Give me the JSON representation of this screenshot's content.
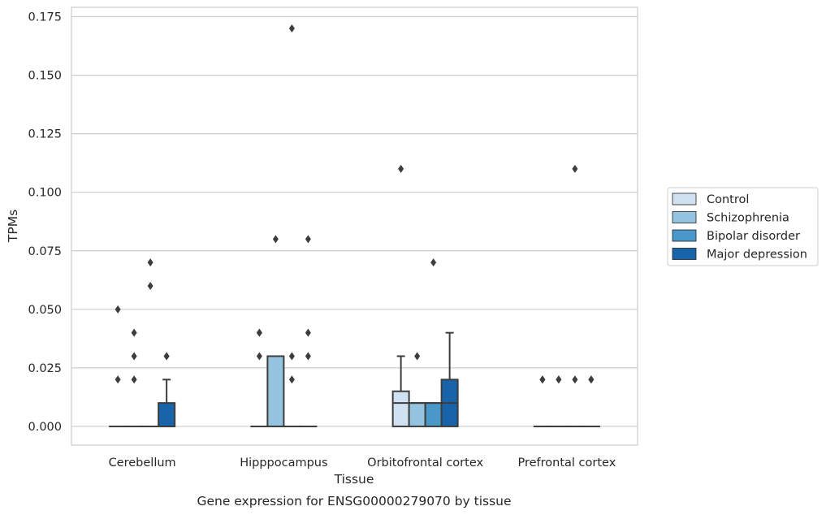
{
  "chart_data": {
    "type": "box",
    "title": "",
    "caption": "Gene expression for ENSG00000279070 by tissue",
    "xlabel": "Tissue",
    "ylabel": "TPMs",
    "ylim": [
      -0.008,
      0.179
    ],
    "yticks": [
      0.0,
      0.025,
      0.05,
      0.075,
      0.1,
      0.125,
      0.15,
      0.175
    ],
    "ytick_labels": [
      "0.000",
      "0.025",
      "0.050",
      "0.075",
      "0.100",
      "0.125",
      "0.150",
      "0.175"
    ],
    "grid": "horizontal",
    "legend_position": "right",
    "categories": [
      "Cerebellum",
      "Hipppocampus",
      "Orbitofrontal cortex",
      "Prefrontal cortex"
    ],
    "series": [
      {
        "name": "Control",
        "color": "#d0e1f2",
        "boxes": [
          {
            "q1": 0,
            "median": 0,
            "q3": 0,
            "whisker_low": 0,
            "whisker_high": 0,
            "outliers": [
              0.02,
              0.05
            ]
          },
          {
            "q1": 0,
            "median": 0,
            "q3": 0,
            "whisker_low": 0,
            "whisker_high": 0,
            "outliers": [
              0.03,
              0.04,
              0.04
            ]
          },
          {
            "q1": 0,
            "median": 0.01,
            "q3": 0.015,
            "whisker_low": 0,
            "whisker_high": 0.03,
            "outliers": [
              0.11
            ]
          },
          {
            "q1": 0,
            "median": 0,
            "q3": 0,
            "whisker_low": 0,
            "whisker_high": 0,
            "outliers": [
              0.02,
              0.02
            ]
          }
        ]
      },
      {
        "name": "Schizophrenia",
        "color": "#94c4df",
        "boxes": [
          {
            "q1": 0,
            "median": 0,
            "q3": 0,
            "whisker_low": 0,
            "whisker_high": 0,
            "outliers": [
              0.02,
              0.03,
              0.04
            ]
          },
          {
            "q1": 0,
            "median": 0,
            "q3": 0.03,
            "whisker_low": 0,
            "whisker_high": 0.03,
            "outliers": [
              0.08
            ]
          },
          {
            "q1": 0,
            "median": 0.01,
            "q3": 0.01,
            "whisker_low": 0,
            "whisker_high": 0.01,
            "outliers": [
              0.03
            ]
          },
          {
            "q1": 0,
            "median": 0,
            "q3": 0,
            "whisker_low": 0,
            "whisker_high": 0,
            "outliers": [
              0.02,
              0.02
            ]
          }
        ]
      },
      {
        "name": "Bipolar disorder",
        "color": "#4a98c9",
        "boxes": [
          {
            "q1": 0,
            "median": 0,
            "q3": 0,
            "whisker_low": 0,
            "whisker_high": 0,
            "outliers": [
              0.06,
              0.07
            ]
          },
          {
            "q1": 0,
            "median": 0,
            "q3": 0,
            "whisker_low": 0,
            "whisker_high": 0,
            "outliers": [
              0.02,
              0.03,
              0.17
            ]
          },
          {
            "q1": 0,
            "median": 0.01,
            "q3": 0.01,
            "whisker_low": 0,
            "whisker_high": 0.01,
            "outliers": [
              0.07
            ]
          },
          {
            "q1": 0,
            "median": 0,
            "q3": 0,
            "whisker_low": 0,
            "whisker_high": 0,
            "outliers": [
              0.02,
              0.11
            ]
          }
        ]
      },
      {
        "name": "Major depression",
        "color": "#1764ab",
        "boxes": [
          {
            "q1": 0,
            "median": 0,
            "q3": 0.01,
            "whisker_low": 0,
            "whisker_high": 0.02,
            "outliers": [
              0.03,
              0.03
            ]
          },
          {
            "q1": 0,
            "median": 0,
            "q3": 0,
            "whisker_low": 0,
            "whisker_high": 0,
            "outliers": [
              0.03,
              0.04,
              0.08
            ]
          },
          {
            "q1": 0,
            "median": 0.01,
            "q3": 0.02,
            "whisker_low": 0,
            "whisker_high": 0.04,
            "outliers": []
          },
          {
            "q1": 0,
            "median": 0,
            "q3": 0,
            "whisker_low": 0,
            "whisker_high": 0,
            "outliers": [
              0.02,
              0.02
            ]
          }
        ]
      }
    ]
  },
  "colors": {
    "grid": "#cccccc",
    "frame": "#cccccc",
    "box_edge": "#3d3d3d",
    "text": "#262626"
  }
}
